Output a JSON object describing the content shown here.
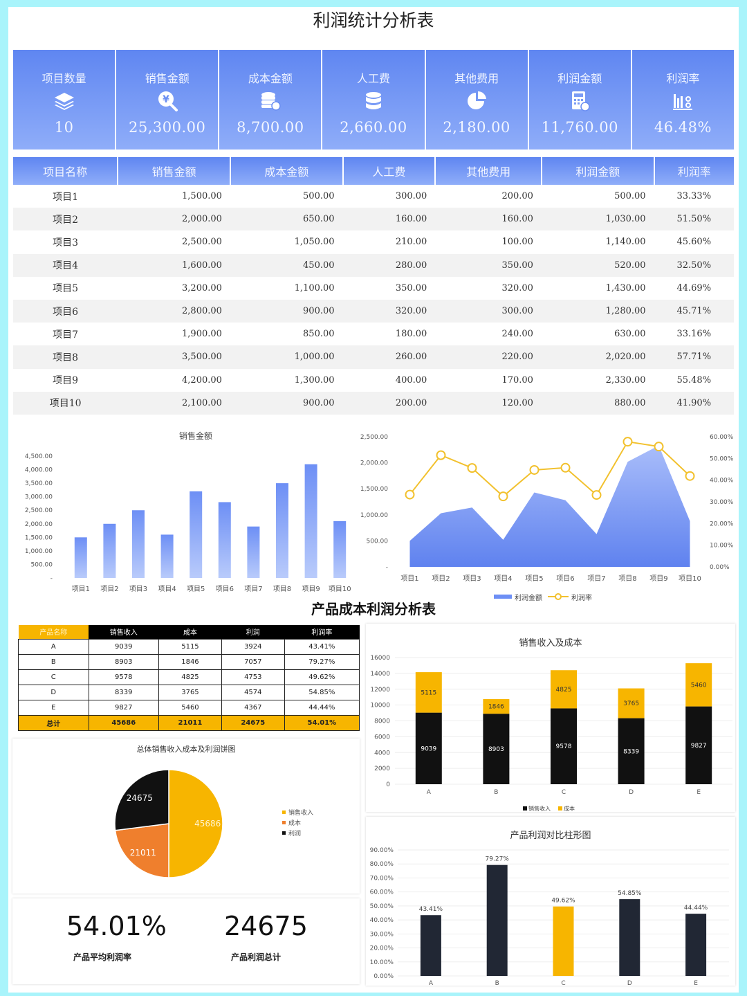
{
  "title": "利润统计分析表",
  "kpis": [
    {
      "label": "项目数量",
      "value": "10",
      "icon": "layers-icon"
    },
    {
      "label": "销售金额",
      "value": "25,300.00",
      "icon": "yen-search-icon"
    },
    {
      "label": "成本金额",
      "value": "8,700.00",
      "icon": "coins-icon"
    },
    {
      "label": "人工费",
      "value": "2,660.00",
      "icon": "database-icon"
    },
    {
      "label": "其他费用",
      "value": "2,180.00",
      "icon": "pie-icon"
    },
    {
      "label": "利润金额",
      "value": "11,760.00",
      "icon": "calculator-icon"
    },
    {
      "label": "利润率",
      "value": "46.48%",
      "icon": "bar-percent-icon"
    }
  ],
  "table": {
    "headers": [
      "项目名称",
      "销售金额",
      "成本金额",
      "人工费",
      "其他费用",
      "利润金额",
      "利润率"
    ],
    "rows": [
      [
        "项目1",
        "1,500.00",
        "500.00",
        "300.00",
        "200.00",
        "500.00",
        "33.33%"
      ],
      [
        "项目2",
        "2,000.00",
        "650.00",
        "160.00",
        "160.00",
        "1,030.00",
        "51.50%"
      ],
      [
        "项目3",
        "2,500.00",
        "1,050.00",
        "210.00",
        "100.00",
        "1,140.00",
        "45.60%"
      ],
      [
        "项目4",
        "1,600.00",
        "450.00",
        "280.00",
        "350.00",
        "520.00",
        "32.50%"
      ],
      [
        "项目5",
        "3,200.00",
        "1,100.00",
        "350.00",
        "320.00",
        "1,430.00",
        "44.69%"
      ],
      [
        "项目6",
        "2,800.00",
        "900.00",
        "320.00",
        "300.00",
        "1,280.00",
        "45.71%"
      ],
      [
        "项目7",
        "1,900.00",
        "850.00",
        "180.00",
        "240.00",
        "630.00",
        "33.16%"
      ],
      [
        "项目8",
        "3,500.00",
        "1,000.00",
        "260.00",
        "220.00",
        "2,020.00",
        "57.71%"
      ],
      [
        "项目9",
        "4,200.00",
        "1,300.00",
        "400.00",
        "170.00",
        "2,330.00",
        "55.48%"
      ],
      [
        "项目10",
        "2,100.00",
        "900.00",
        "200.00",
        "120.00",
        "880.00",
        "41.90%"
      ]
    ]
  },
  "section2_title": "产品成本利润分析表",
  "product_table": {
    "headers": [
      "产品名称",
      "销售收入",
      "成本",
      "利润",
      "利润率"
    ],
    "rows": [
      [
        "A",
        "9039",
        "5115",
        "3924",
        "43.41%"
      ],
      [
        "B",
        "8903",
        "1846",
        "7057",
        "79.27%"
      ],
      [
        "C",
        "9578",
        "4825",
        "4753",
        "49.62%"
      ],
      [
        "D",
        "8339",
        "3765",
        "4574",
        "54.85%"
      ],
      [
        "E",
        "9827",
        "5460",
        "4367",
        "44.44%"
      ]
    ],
    "total": [
      "总计",
      "45686",
      "21011",
      "24675",
      "54.01%"
    ]
  },
  "kpi_bottom": [
    {
      "value": "54.01%",
      "label": "产品平均利润率"
    },
    {
      "value": "24675",
      "label": "产品利润总计"
    }
  ],
  "colors": {
    "blue": "#6a8ef2",
    "yellow": "#f2c12e",
    "amber": "#f7b500",
    "orange": "#ef7f2d",
    "black": "#111111",
    "navy": "#212734"
  },
  "chart_data": [
    {
      "type": "bar",
      "title": "销售金额",
      "categories": [
        "项目1",
        "项目2",
        "项目3",
        "项目4",
        "项目5",
        "项目6",
        "项目7",
        "项目8",
        "项目9",
        "项目10"
      ],
      "values": [
        1500,
        2000,
        2500,
        1600,
        3200,
        2800,
        1900,
        3500,
        4200,
        2100
      ],
      "ylim": [
        0,
        4500
      ],
      "yticks": [
        "-",
        "500.00",
        "1,000.00",
        "1,500.00",
        "2,000.00",
        "2,500.00",
        "3,000.00",
        "3,500.00",
        "4,000.00",
        "4,500.00"
      ]
    },
    {
      "type": "area",
      "categories": [
        "项目1",
        "项目2",
        "项目3",
        "项目4",
        "项目5",
        "项目6",
        "项目7",
        "项目8",
        "项目9",
        "项目10"
      ],
      "series": [
        {
          "name": "利润金额",
          "type": "area",
          "axis": "left",
          "values": [
            500,
            1030,
            1140,
            520,
            1430,
            1280,
            630,
            2020,
            2330,
            880
          ]
        },
        {
          "name": "利润率",
          "type": "line",
          "axis": "right",
          "values": [
            33.33,
            51.5,
            45.6,
            32.5,
            44.69,
            45.71,
            33.16,
            57.71,
            55.48,
            41.9
          ]
        }
      ],
      "ylim_left": [
        0,
        2500
      ],
      "ylim_right": [
        0,
        60
      ],
      "yticks_left": [
        "-",
        "500.00",
        "1,000.00",
        "1,500.00",
        "2,000.00",
        "2,500.00"
      ],
      "yticks_right": [
        "0.00%",
        "10.00%",
        "20.00%",
        "30.00%",
        "40.00%",
        "50.00%",
        "60.00%"
      ],
      "legend": "bottom"
    },
    {
      "type": "bar",
      "stacked": true,
      "title": "销售收入及成本",
      "categories": [
        "A",
        "B",
        "C",
        "D",
        "E"
      ],
      "series": [
        {
          "name": "销售收入",
          "values": [
            9039,
            8903,
            9578,
            8339,
            9827
          ]
        },
        {
          "name": "成本",
          "values": [
            5115,
            1846,
            4825,
            3765,
            5460
          ]
        }
      ],
      "ylim": [
        0,
        16000
      ],
      "yticks": [
        "0",
        "2000",
        "4000",
        "6000",
        "8000",
        "10000",
        "12000",
        "14000",
        "16000"
      ],
      "legend": "bottom"
    },
    {
      "type": "pie",
      "title": "总体销售收入成本及利润饼图",
      "labels": [
        "销售收入",
        "成本",
        "利润"
      ],
      "values": [
        45686,
        21011,
        24675
      ],
      "legend": "right"
    },
    {
      "type": "bar",
      "title": "产品利润对比柱形图",
      "categories": [
        "A",
        "B",
        "C",
        "D",
        "E"
      ],
      "values": [
        43.41,
        79.27,
        49.62,
        54.85,
        44.44
      ],
      "labels": [
        "43.41%",
        "79.27%",
        "49.62%",
        "54.85%",
        "44.44%"
      ],
      "ylim": [
        0,
        90
      ],
      "yticks": [
        "0.00%",
        "10.00%",
        "20.00%",
        "30.00%",
        "40.00%",
        "50.00%",
        "60.00%",
        "70.00%",
        "80.00%",
        "90.00%"
      ]
    }
  ]
}
